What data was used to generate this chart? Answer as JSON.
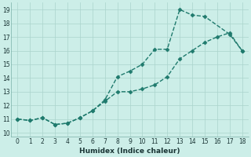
{
  "xlabel": "Humidex (Indice chaleur)",
  "line_color": "#1f7a6d",
  "background_color": "#cceee8",
  "grid_color": "#aad4cc",
  "xlim": [
    -0.5,
    18.5
  ],
  "ylim": [
    9.7,
    19.5
  ],
  "xticks": [
    0,
    1,
    2,
    3,
    4,
    5,
    6,
    7,
    8,
    9,
    10,
    11,
    12,
    13,
    14,
    15,
    16,
    17,
    18
  ],
  "yticks": [
    10,
    11,
    12,
    13,
    14,
    15,
    16,
    17,
    18,
    19
  ],
  "upper_line_x": [
    0,
    1,
    2,
    3,
    4,
    5,
    6,
    7,
    8,
    9,
    10,
    11,
    12,
    13,
    14,
    15,
    17,
    18
  ],
  "upper_line_y": [
    11.0,
    10.9,
    11.1,
    10.6,
    10.7,
    11.1,
    11.6,
    12.4,
    14.1,
    14.5,
    15.0,
    16.1,
    16.1,
    19.0,
    18.6,
    18.5,
    17.2,
    16.0
  ],
  "lower_line_x": [
    0,
    1,
    2,
    3,
    4,
    5,
    6,
    7,
    8,
    9,
    10,
    11,
    12,
    13,
    14,
    15,
    16,
    17,
    18
  ],
  "lower_line_y": [
    11.0,
    10.9,
    11.1,
    10.6,
    10.7,
    11.1,
    11.6,
    12.3,
    13.0,
    13.0,
    13.2,
    13.5,
    14.1,
    15.4,
    16.0,
    16.6,
    17.0,
    17.3,
    16.0
  ],
  "marker_size": 2.5,
  "line_width": 1.0
}
